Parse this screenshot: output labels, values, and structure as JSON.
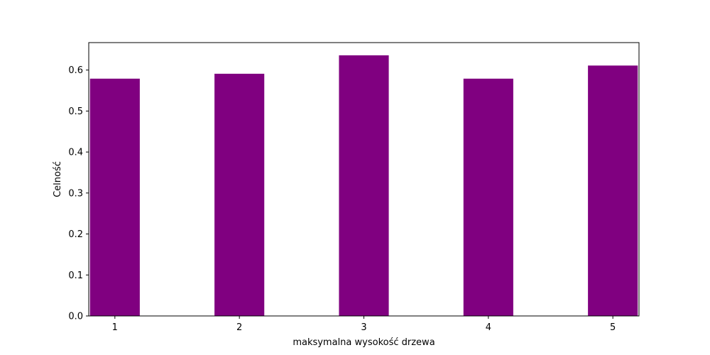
{
  "chart_data": {
    "type": "bar",
    "categories": [
      "1",
      "2",
      "3",
      "4",
      "5"
    ],
    "values": [
      0.579,
      0.591,
      0.636,
      0.579,
      0.611
    ],
    "title": "",
    "xlabel": "maksymalna wysokość drzewa",
    "ylabel": "Celność",
    "ylim": [
      0,
      0.667
    ],
    "yticks": [
      0.0,
      0.1,
      0.2,
      0.3,
      0.4,
      0.5,
      0.6
    ],
    "ytick_labels": [
      "0.0",
      "0.1",
      "0.2",
      "0.3",
      "0.4",
      "0.5",
      "0.6"
    ],
    "grid": false,
    "bar_color": "#800080"
  }
}
